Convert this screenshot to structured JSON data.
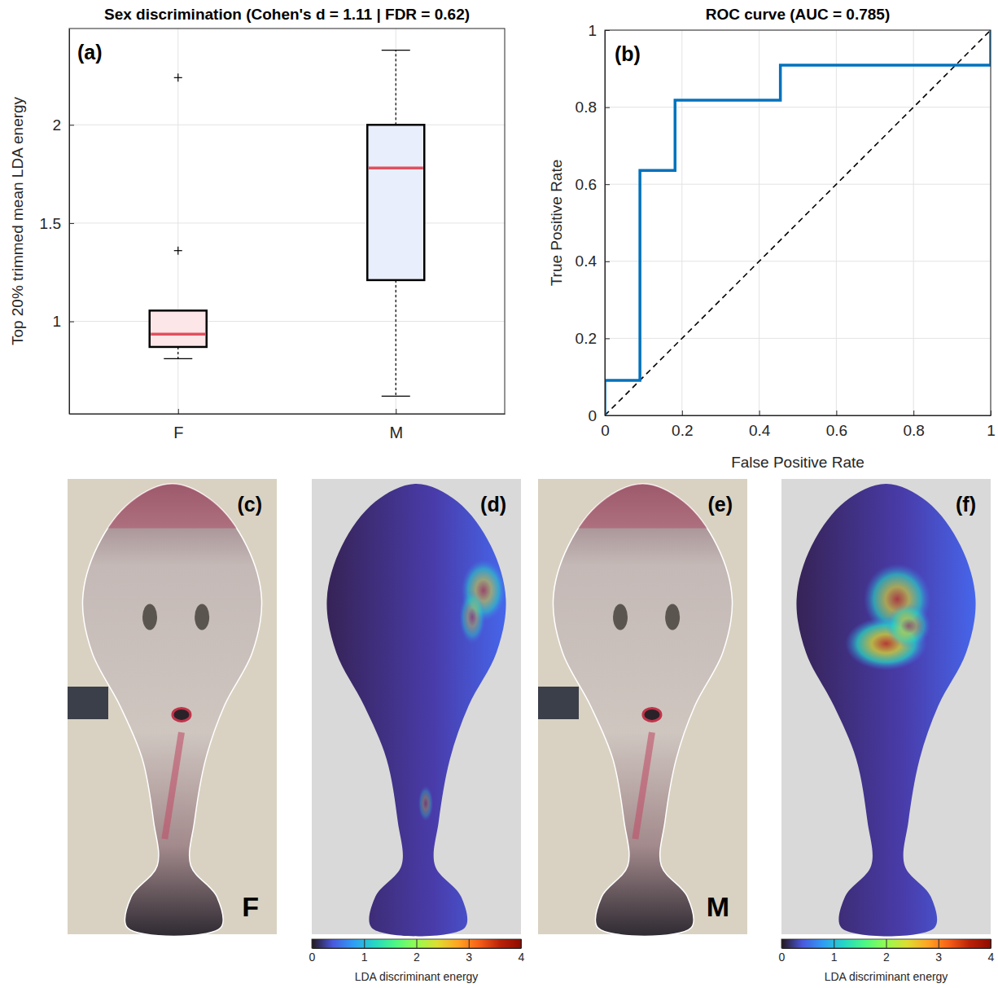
{
  "chart_data": [
    {
      "type": "box",
      "panel_label": "(a)",
      "title": "Sex discrimination (Cohen's d = 1.11 | FDR = 0.62)",
      "y_label": "Top 20% trimmed mean LDA energy",
      "categories": [
        "F",
        "M"
      ],
      "boxes": [
        {
          "whisker_low": 0.81,
          "q1": 0.87,
          "median": 0.935,
          "q3": 1.055,
          "whisker_high": 1.055,
          "outliers": [
            1.36,
            2.24
          ]
        },
        {
          "whisker_low": 0.62,
          "q1": 1.21,
          "median": 1.78,
          "q3": 2.0,
          "whisker_high": 2.38,
          "outliers": []
        }
      ],
      "colors": [
        "#fde6e8",
        "#e8eefb"
      ],
      "marker": "plus",
      "ylim": [
        0.53,
        2.49
      ],
      "yticks": [
        1,
        1.5,
        2
      ],
      "grid": true
    },
    {
      "type": "line",
      "panel_label": "(b)",
      "title": "ROC curve (AUC = 0.785)",
      "x_label": "False Positive Rate",
      "y_label": "True Positive Rate",
      "series": [
        {
          "color": "#0072bd",
          "line_style": "solid",
          "x": [
            0,
            0,
            0.091,
            0.091,
            0.182,
            0.182,
            0.455,
            0.455,
            1,
            1
          ],
          "values": [
            0,
            0.091,
            0.091,
            0.636,
            0.636,
            0.818,
            0.818,
            0.909,
            0.909,
            1
          ]
        },
        {
          "color": "#000000",
          "line_style": "dashed",
          "x": [
            0,
            1
          ],
          "values": [
            0,
            1
          ]
        }
      ],
      "xlim": [
        0,
        1
      ],
      "xticks": [
        0,
        0.2,
        0.4,
        0.6,
        0.8,
        1
      ],
      "ylim": [
        0,
        1
      ],
      "yticks": [
        0,
        0.2,
        0.4,
        0.6,
        0.8,
        1
      ],
      "grid": true
    }
  ],
  "image_panels": [
    {
      "panel_label": "(c)",
      "kind": "composite",
      "sex": "F"
    },
    {
      "panel_label": "(d)",
      "kind": "energy_map",
      "colorbar": {
        "range": [
          0,
          4
        ],
        "ticks": [
          0,
          1,
          2,
          3,
          4
        ],
        "label": "LDA discriminant energy"
      }
    },
    {
      "panel_label": "(e)",
      "kind": "composite",
      "sex": "M"
    },
    {
      "panel_label": "(f)",
      "kind": "energy_map",
      "colorbar": {
        "range": [
          0,
          4
        ],
        "ticks": [
          0,
          1,
          2,
          3,
          4
        ],
        "label": "LDA discriminant energy"
      }
    }
  ]
}
